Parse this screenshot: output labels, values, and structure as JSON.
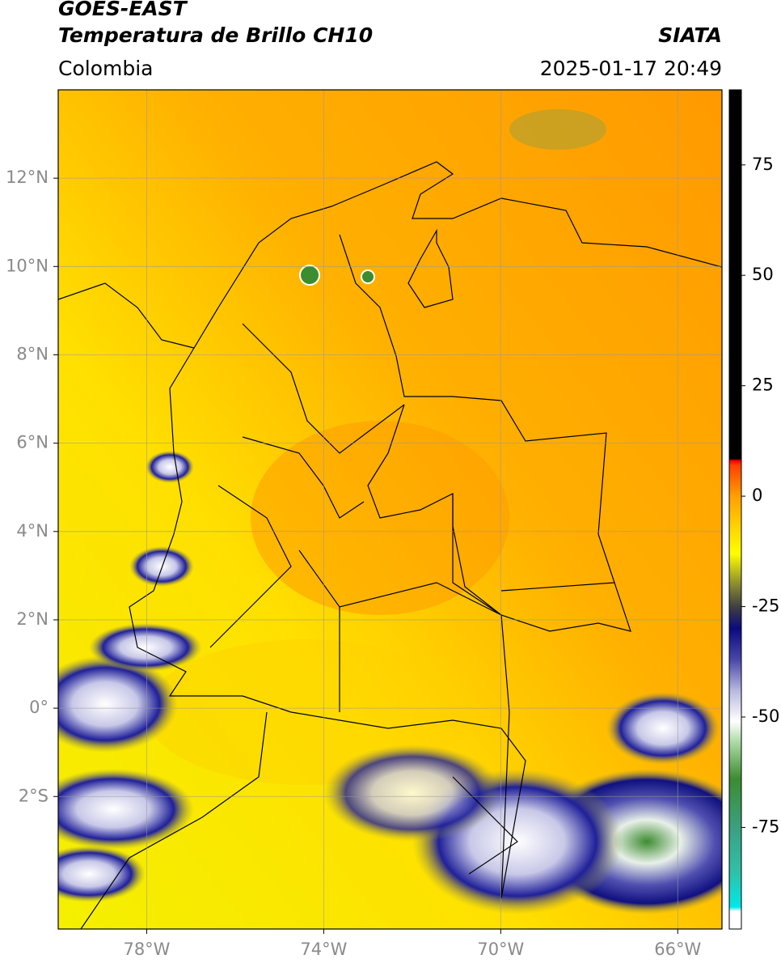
{
  "chart_data": {
    "type": "map",
    "title": "GOES-EAST",
    "subtitle": "Temperatura de Brillo CH10",
    "region": "Colombia",
    "source": "SIATA",
    "timestamp": "2025-01-17 20:49",
    "xlim": [
      -80,
      -65
    ],
    "ylim": [
      -5,
      14
    ],
    "xticks": [
      {
        "value": -78,
        "label": "78°W"
      },
      {
        "value": -74,
        "label": "74°W"
      },
      {
        "value": -70,
        "label": "70°W"
      },
      {
        "value": -66,
        "label": "66°W"
      }
    ],
    "yticks": [
      {
        "value": -2,
        "label": "2°S"
      },
      {
        "value": 0,
        "label": "0°"
      },
      {
        "value": 2,
        "label": "2°N"
      },
      {
        "value": 4,
        "label": "4°N"
      },
      {
        "value": 6,
        "label": "6°N"
      },
      {
        "value": 8,
        "label": "8°N"
      },
      {
        "value": 10,
        "label": "10°N"
      },
      {
        "value": 12,
        "label": "12°N"
      }
    ],
    "grid": true,
    "colorbar": {
      "lim": [
        -98,
        92
      ],
      "ticks": [
        -75,
        -50,
        -25,
        0,
        25,
        50,
        75
      ],
      "colormap": [
        {
          "value": -98,
          "color": "#ffffff"
        },
        {
          "value": -94,
          "color": "#ffffff"
        },
        {
          "value": -93,
          "color": "#00e8e8"
        },
        {
          "value": -85,
          "color": "#30c0a8"
        },
        {
          "value": -75,
          "color": "#3aa080"
        },
        {
          "value": -64,
          "color": "#3c8c30"
        },
        {
          "value": -56,
          "color": "#a8d8a0"
        },
        {
          "value": -51,
          "color": "#ffffff"
        },
        {
          "value": -44,
          "color": "#b8b8e0"
        },
        {
          "value": -37,
          "color": "#4848a8"
        },
        {
          "value": -30,
          "color": "#0a0a80"
        },
        {
          "value": -25,
          "color": "#404040"
        },
        {
          "value": -20,
          "color": "#8a8a30"
        },
        {
          "value": -13,
          "color": "#ffff00"
        },
        {
          "value": 0,
          "color": "#ffa000"
        },
        {
          "value": 7,
          "color": "#ff4000"
        },
        {
          "value": 8,
          "color": "#ff0000"
        },
        {
          "value": 8.5,
          "color": "#000000"
        },
        {
          "value": 92,
          "color": "#000000"
        }
      ]
    }
  }
}
